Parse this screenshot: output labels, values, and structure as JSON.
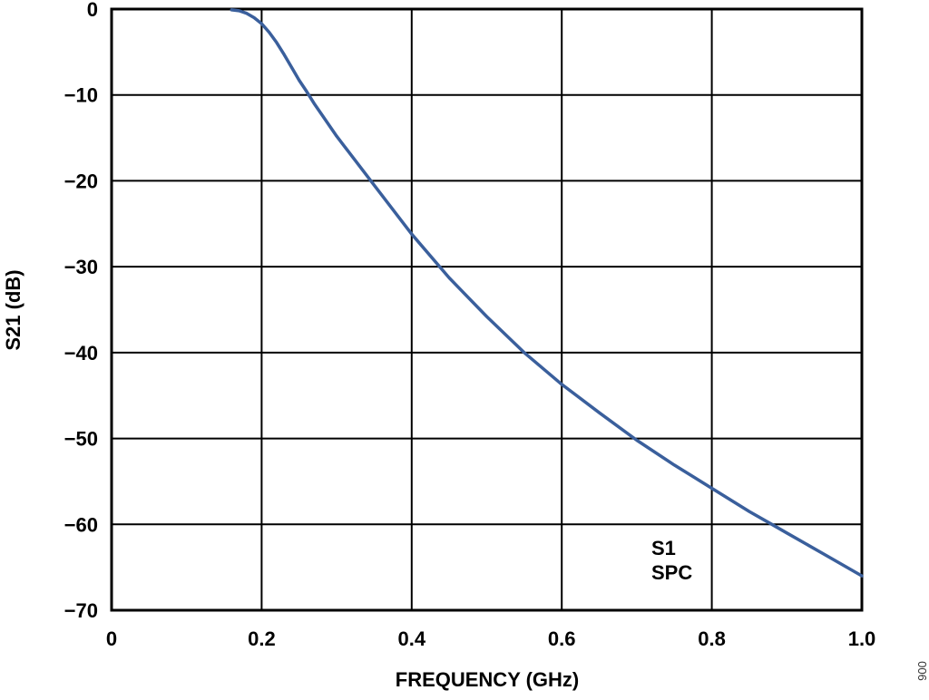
{
  "chart_data": {
    "type": "line",
    "title": "",
    "xlabel": "FREQUENCY (GHz)",
    "ylabel": "S21 (dB)",
    "xlim": [
      0,
      1.0
    ],
    "ylim": [
      -70,
      0
    ],
    "x_ticks": [
      0,
      0.2,
      0.4,
      0.6,
      0.8,
      1.0
    ],
    "x_tick_labels": [
      "0",
      "0.2",
      "0.4",
      "0.6",
      "0.8",
      "1.0"
    ],
    "y_ticks": [
      0,
      -10,
      -20,
      -30,
      -40,
      -50,
      -60,
      -70
    ],
    "y_tick_labels": [
      "0",
      "−10",
      "−20",
      "−30",
      "−40",
      "−50",
      "−60",
      "−70"
    ],
    "grid": true,
    "series": [
      {
        "color": "#3a5f9c",
        "x": [
          0.16,
          0.17,
          0.18,
          0.19,
          0.2,
          0.21,
          0.22,
          0.23,
          0.24,
          0.25,
          0.26,
          0.27,
          0.3,
          0.35,
          0.4,
          0.45,
          0.5,
          0.55,
          0.6,
          0.65,
          0.7,
          0.75,
          0.8,
          0.85,
          0.88,
          0.9,
          0.95,
          1.0
        ],
        "y": [
          -0.1,
          -0.2,
          -0.5,
          -1.0,
          -1.7,
          -2.7,
          -3.9,
          -5.3,
          -6.8,
          -8.3,
          -9.6,
          -11.0,
          -14.8,
          -20.5,
          -26.2,
          -31.3,
          -35.8,
          -40.0,
          -43.7,
          -47.0,
          -50.2,
          -53.1,
          -55.8,
          -58.5,
          -60.0,
          -61.0,
          -63.5,
          -66.0
        ]
      }
    ],
    "annotations": [
      "S1",
      "SPC"
    ]
  },
  "figure_id": "006"
}
